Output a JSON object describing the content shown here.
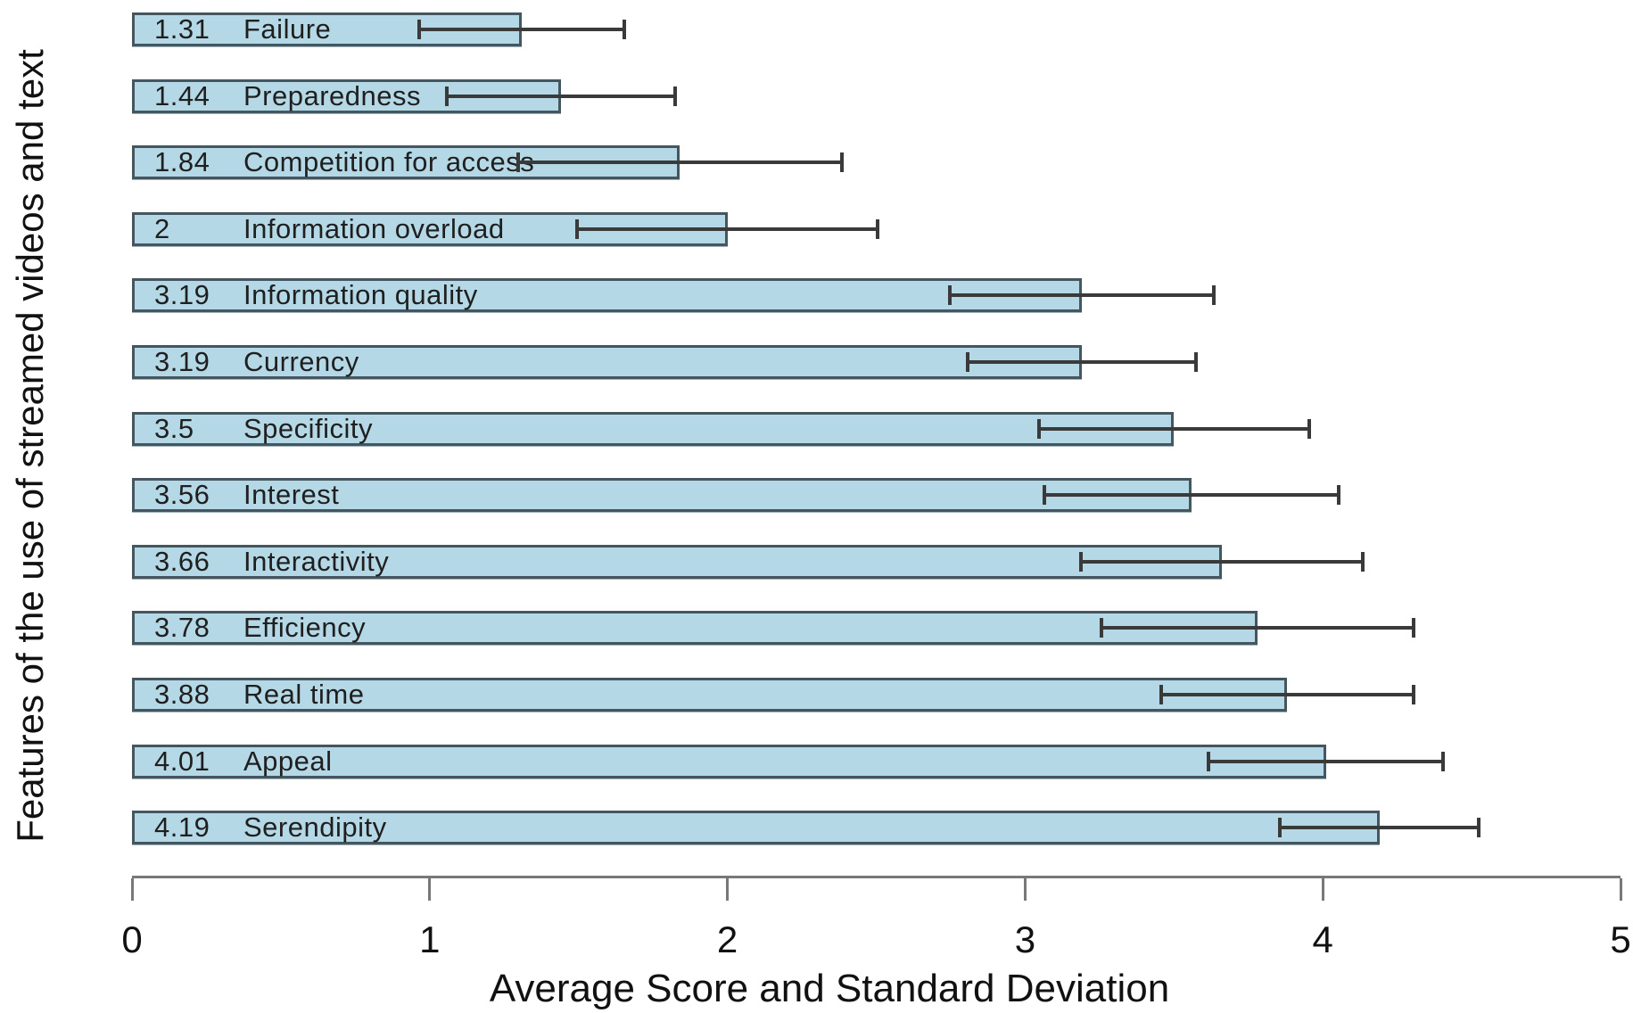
{
  "chart_data": {
    "type": "bar",
    "orientation": "horizontal",
    "title": "",
    "xlabel": "Average Score and Standard Deviation",
    "ylabel": "Features of the use of streamed videos and text",
    "xlim": [
      0,
      5
    ],
    "xticks": [
      "0",
      "1",
      "2",
      "3",
      "4",
      "5"
    ],
    "grid": false,
    "legend": null,
    "error_bar_meaning": "mean plus/minus standard deviation",
    "categories": [
      "Failure",
      "Preparedness",
      "Competition for access",
      "Information overload",
      "Information quality",
      "Currency",
      "Specificity",
      "Interest",
      "Interactivity",
      "Efficiency",
      "Real time",
      "Appeal",
      "Serendipity"
    ],
    "values": [
      1.31,
      1.44,
      1.84,
      2,
      3.19,
      3.19,
      3.5,
      3.56,
      3.66,
      3.78,
      3.88,
      4.01,
      4.19
    ],
    "value_labels": [
      "1.31",
      "1.44",
      "1.84",
      "2",
      "3.19",
      "3.19",
      "3.5",
      "3.56",
      "3.66",
      "3.78",
      "3.88",
      "4.01",
      "4.19"
    ],
    "std_dev": [
      0.35,
      0.39,
      0.55,
      0.51,
      0.45,
      0.39,
      0.46,
      0.5,
      0.48,
      0.53,
      0.43,
      0.4,
      0.34
    ],
    "colors": {
      "bar_fill": "#b5d8e6",
      "bar_border": "#46565e",
      "error_bar": "#3a3a3a",
      "text": "#1f1f1f",
      "axis": "#787878"
    }
  }
}
